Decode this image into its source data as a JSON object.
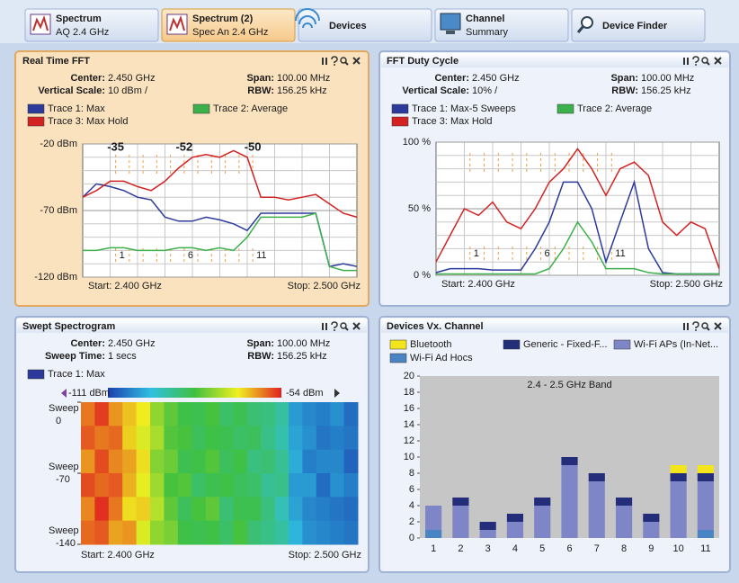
{
  "tabs": [
    {
      "title": "Spectrum",
      "subtitle": "AQ 2.4 GHz"
    },
    {
      "title": "Spectrum (2)",
      "subtitle": "Spec An 2.4 GHz"
    },
    {
      "title": "Devices"
    },
    {
      "title": "Channel",
      "subtitle": "Summary"
    },
    {
      "title": "Device Finder"
    }
  ],
  "panels": {
    "fft": {
      "title": "Real Time FFT",
      "center_label": "Center:",
      "center": "2.450 GHz",
      "span_label": "Span:",
      "span": "100.00 MHz",
      "scale_label": "Vertical Scale:",
      "scale": "10 dBm /",
      "rbw_label": "RBW:",
      "rbw": "156.25 kHz",
      "chart": {
        "type": "line",
        "x": [
          2.4,
          2.405,
          2.41,
          2.415,
          2.42,
          2.425,
          2.43,
          2.435,
          2.44,
          2.445,
          2.45,
          2.455,
          2.46,
          2.465,
          2.47,
          2.475,
          2.48,
          2.485,
          2.49,
          2.495,
          2.5
        ],
        "xlim": [
          2.4,
          2.5
        ],
        "start_label": "Start: 2.400 GHz",
        "stop_label": "Stop: 2.500 GHz",
        "ylim": [
          -120,
          -20
        ],
        "yticks": [
          {
            "value": -20,
            "label": "-20 dBm"
          },
          {
            "value": -70,
            "label": "-70 dBm"
          },
          {
            "value": -120,
            "label": "-120 dBm"
          }
        ],
        "xgrid": [
          2.41,
          2.42,
          2.43,
          2.44,
          2.45,
          2.46,
          2.47,
          2.48,
          2.49
        ],
        "ygrid": [
          -30,
          -40,
          -50,
          -60,
          -80,
          -90,
          -100,
          -110
        ],
        "channel_x": [
          2.412,
          2.417,
          2.422,
          2.427,
          2.432,
          2.437,
          2.442,
          2.447,
          2.452,
          2.457,
          2.462
        ],
        "channel_labels": [
          "1",
          null,
          null,
          null,
          null,
          "6",
          null,
          null,
          null,
          null,
          "11"
        ],
        "peaks": [
          {
            "x": 2.412,
            "value": -35
          },
          {
            "x": 2.437,
            "value": -52
          },
          {
            "x": 2.462,
            "value": -50
          }
        ],
        "series": [
          {
            "name": "Trace 1: Max",
            "color": "#2c3a9c",
            "values": [
              -60,
              -50,
              -52,
              -55,
              -60,
              -62,
              -75,
              -78,
              -78,
              -75,
              -77,
              -80,
              -85,
              -72,
              -72,
              -72,
              -72,
              -72,
              -112,
              -110,
              -112
            ]
          },
          {
            "name": "Trace 2: Average",
            "color": "#3cb04a",
            "values": [
              -100,
              -100,
              -98,
              -98,
              -100,
              -100,
              -100,
              -98,
              -98,
              -100,
              -98,
              -100,
              -90,
              -75,
              -75,
              -75,
              -75,
              -72,
              -112,
              -115,
              -115
            ]
          },
          {
            "name": "Trace 3: Max Hold",
            "color": "#d42222",
            "values": [
              -60,
              -55,
              -48,
              -48,
              -52,
              -55,
              -48,
              -38,
              -30,
              -28,
              -30,
              -25,
              -30,
              -60,
              -60,
              -62,
              -60,
              -58,
              -65,
              -72,
              -75
            ]
          }
        ]
      }
    },
    "duty": {
      "title": "FFT Duty Cycle",
      "center_label": "Center:",
      "center": "2.450 GHz",
      "span_label": "Span:",
      "span": "100.00 MHz",
      "scale_label": "Vertical Scale:",
      "scale": "10% /",
      "rbw_label": "RBW:",
      "rbw": "156.25 kHz",
      "chart": {
        "type": "line",
        "x": [
          2.4,
          2.405,
          2.41,
          2.415,
          2.42,
          2.425,
          2.43,
          2.435,
          2.44,
          2.445,
          2.45,
          2.455,
          2.46,
          2.465,
          2.47,
          2.475,
          2.48,
          2.485,
          2.49,
          2.495,
          2.5
        ],
        "xlim": [
          2.4,
          2.5
        ],
        "start_label": "Start: 2.400 GHz",
        "stop_label": "Stop: 2.500 GHz",
        "ylim": [
          0,
          100
        ],
        "yticks": [
          {
            "value": 0,
            "label": "0 %"
          },
          {
            "value": 50,
            "label": "50 %"
          },
          {
            "value": 100,
            "label": "100 %"
          }
        ],
        "xgrid": [
          2.41,
          2.42,
          2.43,
          2.44,
          2.45,
          2.46,
          2.47,
          2.48,
          2.49
        ],
        "ygrid": [
          10,
          20,
          30,
          40,
          60,
          70,
          80,
          90
        ],
        "channel_x": [
          2.412,
          2.417,
          2.422,
          2.427,
          2.432,
          2.437,
          2.442,
          2.447,
          2.452,
          2.457,
          2.462
        ],
        "channel_labels": [
          "1",
          null,
          null,
          null,
          null,
          "6",
          null,
          null,
          null,
          null,
          "11"
        ],
        "series": [
          {
            "name": "Trace 1: Max-5 Sweeps",
            "color": "#2c3a9c",
            "values": [
              2,
              5,
              5,
              5,
              4,
              4,
              4,
              20,
              40,
              70,
              70,
              50,
              10,
              40,
              70,
              20,
              2,
              1,
              1,
              1,
              1
            ]
          },
          {
            "name": "Trace 2: Average",
            "color": "#3cb04a",
            "values": [
              1,
              1,
              1,
              1,
              1,
              1,
              1,
              1,
              5,
              20,
              40,
              25,
              5,
              5,
              5,
              2,
              1,
              1,
              1,
              1,
              1
            ]
          },
          {
            "name": "Trace 3: Max Hold",
            "color": "#d42222",
            "values": [
              10,
              30,
              50,
              45,
              55,
              40,
              35,
              50,
              70,
              80,
              95,
              80,
              60,
              80,
              85,
              75,
              40,
              30,
              40,
              35,
              5
            ]
          }
        ]
      }
    },
    "spectrogram": {
      "title": "Swept Spectrogram",
      "center_label": "Center:",
      "center": "2.450 GHz",
      "span_label": "Span:",
      "span": "100.00 MHz",
      "scale_label": "Sweep Time:",
      "scale": "1 secs",
      "rbw_label": "RBW:",
      "rbw": "156.25 kHz",
      "chart": {
        "type": "heatmap",
        "start_label": "Start: 2.400 GHz",
        "stop_label": "Stop: 2.500 GHz",
        "sweep_label": "Sweep",
        "ylim": [
          -140,
          0
        ],
        "yticks": [
          -140,
          -70,
          0
        ],
        "color_min": {
          "value": -111,
          "label": "-111 dBm"
        },
        "color_max": {
          "value": -54,
          "label": "-54 dBm"
        },
        "series": [
          {
            "name": "Trace 1: Max",
            "color": "#2c3a9c"
          }
        ],
        "values": [
          [
            -60,
            -56,
            -62,
            -65,
            -68,
            -76,
            -80,
            -83,
            -84,
            -82,
            -86,
            -84,
            -87,
            -88,
            -91,
            -101,
            -103,
            -104,
            -102,
            -106
          ],
          [
            -58,
            -60,
            -59,
            -66,
            -70,
            -74,
            -81,
            -82,
            -85,
            -83,
            -84,
            -86,
            -85,
            -89,
            -92,
            -100,
            -102,
            -105,
            -104,
            -105
          ],
          [
            -62,
            -57,
            -61,
            -63,
            -67,
            -77,
            -79,
            -84,
            -83,
            -81,
            -85,
            -83,
            -88,
            -87,
            -90,
            -99,
            -104,
            -103,
            -103,
            -107
          ],
          [
            -57,
            -59,
            -58,
            -64,
            -69,
            -75,
            -82,
            -81,
            -86,
            -84,
            -83,
            -85,
            -86,
            -90,
            -89,
            -101,
            -101,
            -106,
            -102,
            -104
          ],
          [
            -61,
            -55,
            -60,
            -67,
            -66,
            -73,
            -80,
            -85,
            -82,
            -80,
            -87,
            -84,
            -84,
            -88,
            -93,
            -100,
            -103,
            -104,
            -105,
            -106
          ],
          [
            -59,
            -58,
            -63,
            -62,
            -70,
            -76,
            -78,
            -83,
            -84,
            -83,
            -86,
            -82,
            -87,
            -89,
            -91,
            -98,
            -102,
            -103,
            -104,
            -105
          ]
        ]
      }
    },
    "devices": {
      "title": "Devices Vx. Channel",
      "chart": {
        "type": "bar",
        "annotation": "2.4 - 2.5 GHz Band",
        "categories": [
          "1",
          "2",
          "3",
          "4",
          "5",
          "6",
          "7",
          "8",
          "9",
          "10",
          "11"
        ],
        "ylim": [
          0,
          20
        ],
        "yticks": [
          0,
          2,
          4,
          6,
          8,
          10,
          12,
          14,
          16,
          18,
          20
        ],
        "series": [
          {
            "name": "Bluetooth",
            "color": "#f2e51c",
            "values": [
              0,
              0,
              0,
              0,
              0,
              0,
              0,
              0,
              0,
              1,
              1
            ]
          },
          {
            "name": "Generic - Fixed-F...",
            "color": "#232d7a",
            "values": [
              0,
              1,
              1,
              1,
              1,
              1,
              1,
              1,
              1,
              1,
              1
            ]
          },
          {
            "name": "Wi-Fi APs (In-Net...",
            "color": "#7f86c8",
            "values": [
              3,
              4,
              1,
              2,
              4,
              9,
              7,
              4,
              2,
              7,
              6
            ]
          },
          {
            "name": "Wi-Fi Ad Hocs",
            "color": "#4a84c2",
            "values": [
              1,
              0,
              0,
              0,
              0,
              0,
              0,
              0,
              0,
              0,
              1
            ]
          }
        ]
      }
    }
  }
}
